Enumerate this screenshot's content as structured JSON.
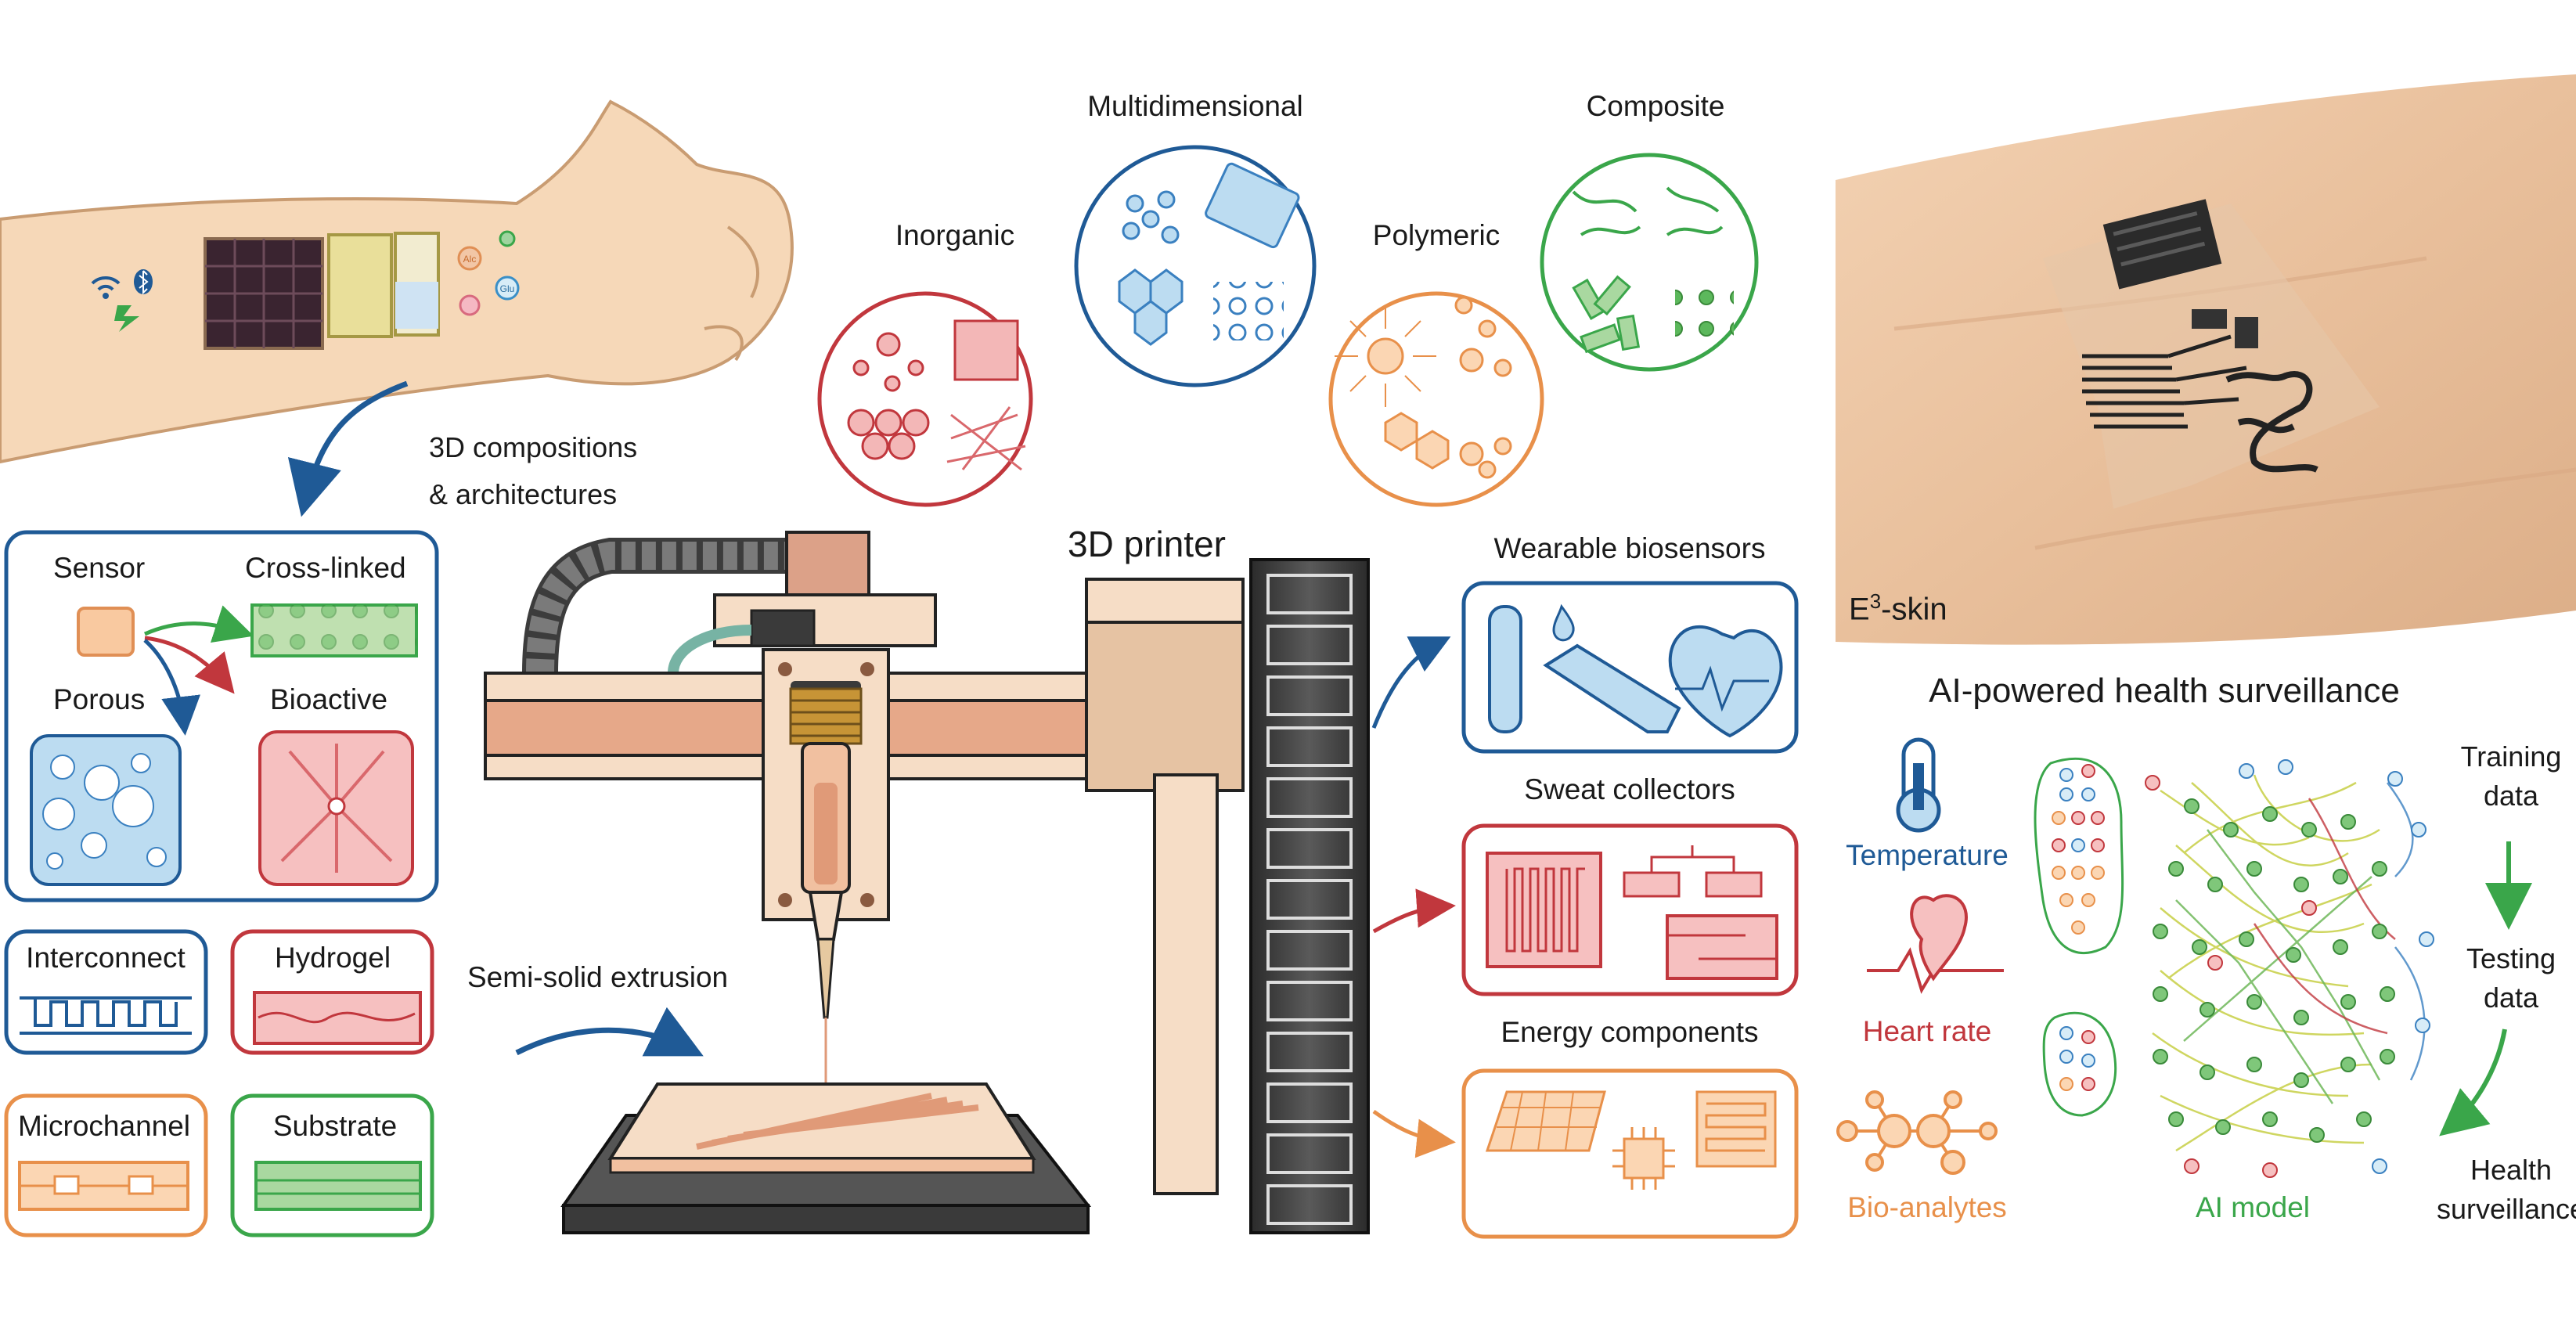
{
  "arm": {
    "badges": [
      "Alc",
      "Glu"
    ],
    "caption": [
      "3D compositions",
      "& architectures"
    ]
  },
  "architectures": {
    "sensor": "Sensor",
    "cross_linked": "Cross-linked",
    "porous": "Porous",
    "bioactive": "Bioactive"
  },
  "modules": {
    "interconnect": "Interconnect",
    "hydrogel": "Hydrogel",
    "microchannel": "Microchannel",
    "substrate": "Substrate"
  },
  "materials": {
    "inorganic": "Inorganic",
    "multidimensional": "Multidimensional",
    "polymeric": "Polymeric",
    "composite": "Composite"
  },
  "printer": {
    "title": "3D printer",
    "extrusion": "Semi-solid extrusion"
  },
  "outputs": {
    "wearable": "Wearable biosensors",
    "sweat": "Sweat collectors",
    "energy": "Energy components"
  },
  "photo": {
    "caption_prefix": "E",
    "caption_sup": "3",
    "caption_suffix": "-skin"
  },
  "ai": {
    "title": "AI-powered health surveillance",
    "temperature": "Temperature",
    "heart_rate": "Heart rate",
    "bio_analytes": "Bio-analytes",
    "ai_model": "AI model",
    "training": [
      "Training",
      "data"
    ],
    "testing": [
      "Testing",
      "data"
    ],
    "health": [
      "Health",
      "surveillance"
    ]
  },
  "colors": {
    "blue": "#1f5a96",
    "red": "#c1373d",
    "orange": "#e8904a",
    "green": "#3aa64a"
  }
}
